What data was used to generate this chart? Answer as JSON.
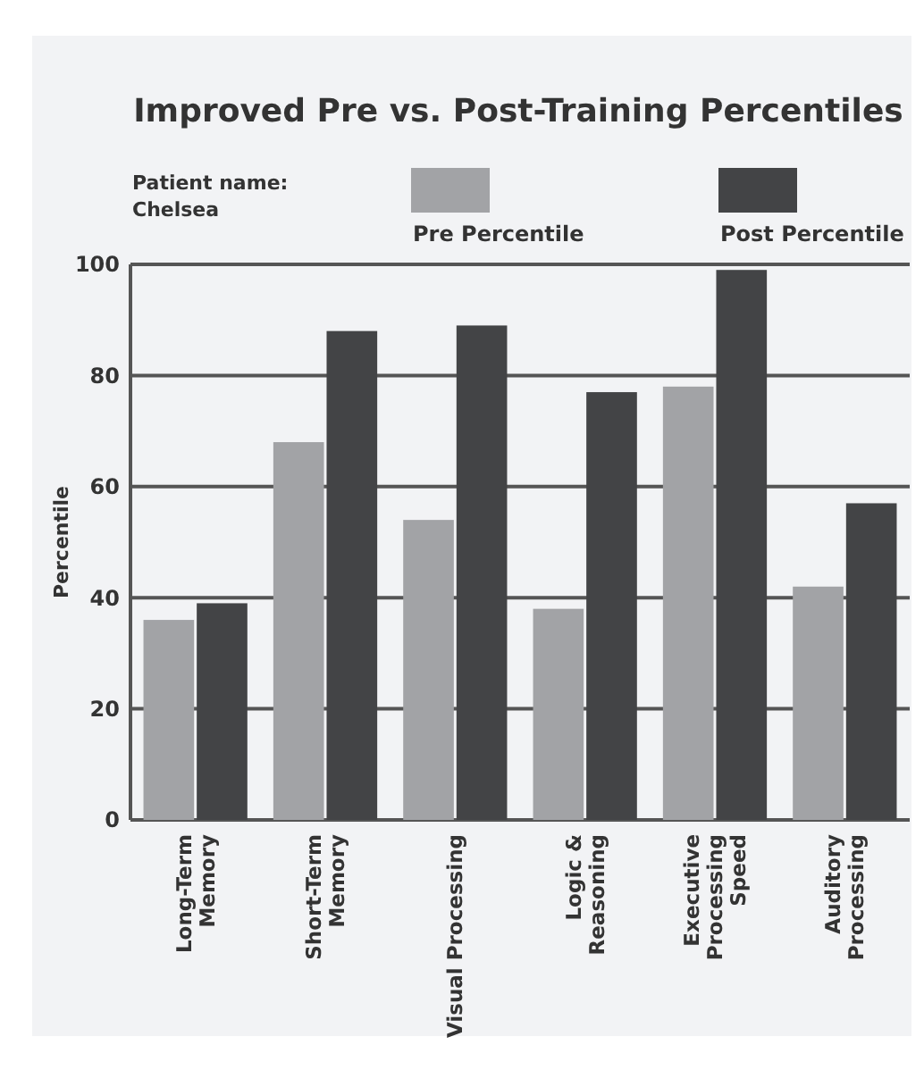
{
  "chart_data": {
    "type": "bar",
    "title": "Improved Pre vs. Post-Training Percentiles",
    "ylabel": "Percentile",
    "annotations": [
      "Patient name:\nChelsea"
    ],
    "categories": [
      "Long-Term\nMemory",
      "Short-Term\nMemory",
      "Visual Processing",
      "Logic &\nReasoning",
      "Executive\nProcessing\nSpeed",
      "Auditory\nProcessing"
    ],
    "series": [
      {
        "name": "Pre Percentile",
        "color": "#a2a3a6",
        "values": [
          36,
          68,
          54,
          38,
          78,
          42
        ]
      },
      {
        "name": "Post Percentile",
        "color": "#434446",
        "values": [
          39,
          88,
          89,
          77,
          99,
          57
        ]
      }
    ],
    "ylim": [
      0,
      100
    ],
    "yticks": [
      0,
      20,
      40,
      60,
      80,
      100
    ],
    "grid": "y",
    "legend": "top"
  }
}
